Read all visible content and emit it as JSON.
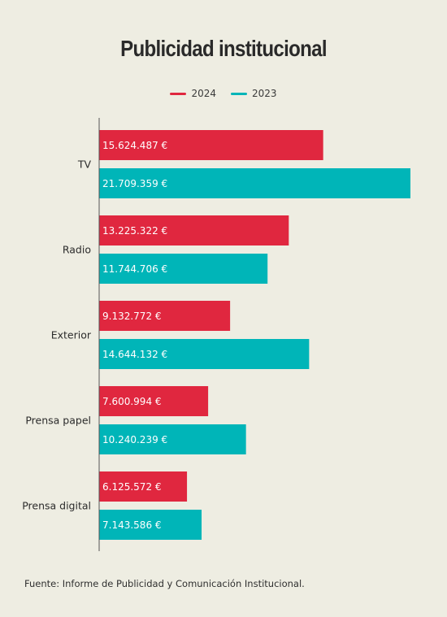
{
  "chart_data": {
    "type": "bar",
    "orientation": "horizontal",
    "title": "Publicidad institucional",
    "categories": [
      "TV",
      "Radio",
      "Exterior",
      "Prensa papel",
      "Prensa digital"
    ],
    "series": [
      {
        "name": "2024",
        "color": "#e0273f",
        "values": [
          15624487,
          13225322,
          9132772,
          7600994,
          6125572
        ],
        "labels": [
          "15.624.487 €",
          "13.225.322 €",
          "9.132.772 €",
          "7.600.994 €",
          "6.125.572 €"
        ]
      },
      {
        "name": "2023",
        "color": "#00b5b8",
        "values": [
          21709359,
          11744706,
          14644132,
          10240239,
          7143586
        ],
        "labels": [
          "21.709.359 €",
          "11.744.706 €",
          "14.644.132 €",
          "10.240.239 €",
          "7.143.586 €"
        ]
      }
    ],
    "xlim": [
      0,
      21709359
    ],
    "grid": false,
    "legend_position": "top-center",
    "source": "Fuente: Informe de Publicidad y Comunicación Institucional."
  }
}
